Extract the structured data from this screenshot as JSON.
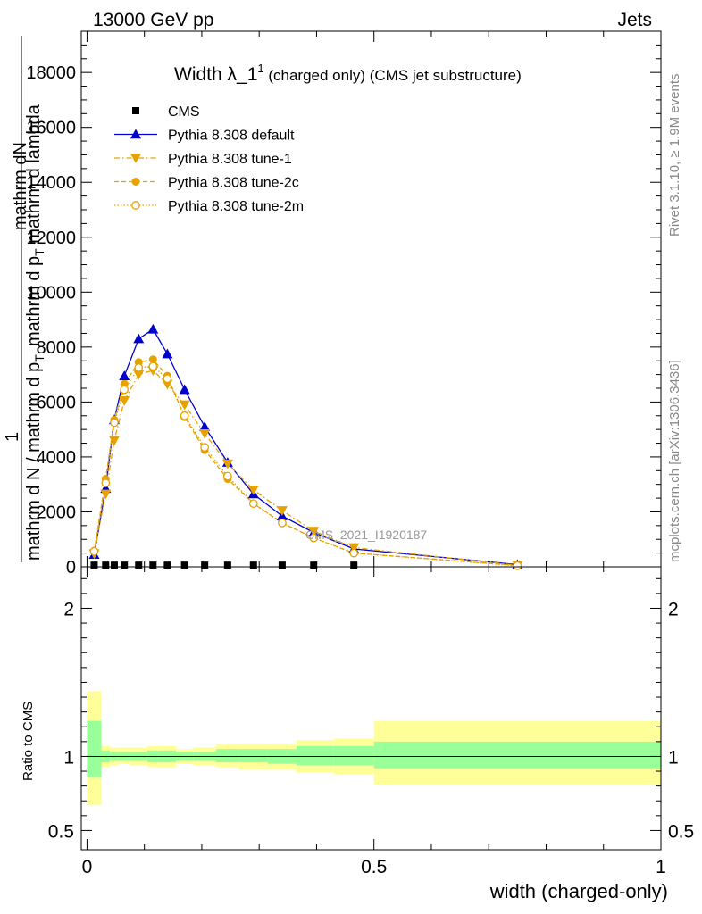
{
  "header": {
    "left": "13000 GeV pp",
    "right": "Jets"
  },
  "side_labels": {
    "rivet": "Rivet 3.1.10, ≥ 1.9M events",
    "mcplots": "mcplots.cern.ch [arXiv:1306.3436]"
  },
  "watermark": "CMS_2021_I1920187",
  "colors": {
    "cms": "#000000",
    "default": "#0000cc",
    "tune": "#e8a200",
    "band_inner": "#99ff99",
    "band_outer": "#ffff99"
  },
  "chart_data": {
    "type": "line",
    "title_main": "Width λ_1",
    "title_sup": "1",
    "title_rest": "(charged only) (CMS jet substructure)",
    "ylabel_num_top": "mathrm d",
    "ylabel_num_N": "N",
    "ylabel_num_sub": "mathrm d p",
    "ylabel_num_T": "T",
    "ylabel_num_tail": "mathrm d lambda",
    "ylabel_frac_one": "1",
    "ylabel_den": "mathrm d N / mathrm d p",
    "ylabel_den_T": "T",
    "xlabel": "width (charged-only)",
    "ratio_ylabel": "Ratio to CMS",
    "xlim": [
      -0.01,
      1.0
    ],
    "ylim": [
      0,
      19500
    ],
    "ratio_ylim": [
      0.37,
      2.28
    ],
    "x_ticks": [
      {
        "v": 0,
        "label": "0"
      },
      {
        "v": 0.5,
        "label": "0.5"
      },
      {
        "v": 1,
        "label": "1"
      }
    ],
    "y_ticks": [
      {
        "v": 0,
        "label": "0"
      },
      {
        "v": 2000,
        "label": "2000"
      },
      {
        "v": 4000,
        "label": "4000"
      },
      {
        "v": 6000,
        "label": "6000"
      },
      {
        "v": 8000,
        "label": "8000"
      },
      {
        "v": 10000,
        "label": "10000"
      },
      {
        "v": 12000,
        "label": "12000"
      },
      {
        "v": 14000,
        "label": "14000"
      },
      {
        "v": 16000,
        "label": "16000"
      },
      {
        "v": 18000,
        "label": "18000"
      }
    ],
    "ratio_ticks": [
      {
        "v": 0.5,
        "label": "0.5"
      },
      {
        "v": 1,
        "label": "1"
      },
      {
        "v": 2,
        "label": "2"
      }
    ],
    "cms_x": [
      0.0125,
      0.0325,
      0.0475,
      0.065,
      0.09,
      0.115,
      0.14,
      0.17,
      0.205,
      0.245,
      0.29,
      0.34,
      0.395,
      0.465
    ],
    "cms_y": [
      60,
      60,
      60,
      60,
      60,
      60,
      60,
      60,
      60,
      60,
      60,
      60,
      60,
      60
    ],
    "series": [
      {
        "name": "Pythia 8.308 default",
        "key": "default",
        "marker": "triangle-up",
        "dash": "",
        "x": [
          0.0125,
          0.0325,
          0.0475,
          0.065,
          0.09,
          0.115,
          0.14,
          0.17,
          0.205,
          0.245,
          0.29,
          0.34,
          0.395,
          0.465,
          0.75
        ],
        "y": [
          450,
          2850,
          5350,
          6950,
          8300,
          8650,
          7750,
          6450,
          5100,
          3800,
          2650,
          1850,
          1250,
          650,
          80
        ]
      },
      {
        "name": "Pythia 8.308 tune-1",
        "key": "tune",
        "marker": "triangle-down",
        "dash": "6 3 1.5 3",
        "x": [
          0.0125,
          0.0325,
          0.0475,
          0.065,
          0.09,
          0.115,
          0.14,
          0.17,
          0.205,
          0.245,
          0.29,
          0.34,
          0.395,
          0.465,
          0.75
        ],
        "y": [
          480,
          2650,
          4600,
          6050,
          7000,
          7150,
          6650,
          5900,
          4850,
          3750,
          2800,
          2050,
          1300,
          700,
          60
        ]
      },
      {
        "name": "Pythia 8.308 tune-2c",
        "key": "tune",
        "marker": "circle",
        "dash": "5 3",
        "x": [
          0.0125,
          0.0325,
          0.0475,
          0.065,
          0.09,
          0.115,
          0.14,
          0.17,
          0.205,
          0.245,
          0.29,
          0.34,
          0.395,
          0.465,
          0.75
        ],
        "y": [
          580,
          3200,
          5350,
          6650,
          7450,
          7550,
          6950,
          5450,
          4250,
          3200,
          2300,
          1600,
          1050,
          500,
          50
        ]
      },
      {
        "name": "Pythia 8.308 tune-2m",
        "key": "tune",
        "marker": "circle-open",
        "dash": "1.5 2",
        "x": [
          0.0125,
          0.0325,
          0.0475,
          0.065,
          0.09,
          0.115,
          0.14,
          0.17,
          0.205,
          0.245,
          0.29,
          0.34,
          0.395,
          0.465,
          0.75
        ],
        "y": [
          560,
          3050,
          5250,
          6450,
          7250,
          7300,
          6850,
          5500,
          4350,
          3300,
          2300,
          1600,
          1050,
          500,
          40
        ]
      }
    ],
    "ratio_bands": [
      {
        "x0": 0.0,
        "x1": 0.025,
        "in_lo": 0.86,
        "in_hi": 1.24,
        "out_lo": 0.67,
        "out_hi": 1.44
      },
      {
        "x0": 0.025,
        "x1": 0.04,
        "in_lo": 0.96,
        "in_hi": 1.04,
        "out_lo": 0.93,
        "out_hi": 1.07
      },
      {
        "x0": 0.04,
        "x1": 0.055,
        "in_lo": 0.97,
        "in_hi": 1.03,
        "out_lo": 0.94,
        "out_hi": 1.06
      },
      {
        "x0": 0.055,
        "x1": 0.075,
        "in_lo": 0.97,
        "in_hi": 1.03,
        "out_lo": 0.95,
        "out_hi": 1.06
      },
      {
        "x0": 0.075,
        "x1": 0.105,
        "in_lo": 0.97,
        "in_hi": 1.03,
        "out_lo": 0.94,
        "out_hi": 1.06
      },
      {
        "x0": 0.105,
        "x1": 0.125,
        "in_lo": 0.96,
        "in_hi": 1.04,
        "out_lo": 0.93,
        "out_hi": 1.07
      },
      {
        "x0": 0.125,
        "x1": 0.155,
        "in_lo": 0.96,
        "in_hi": 1.04,
        "out_lo": 0.93,
        "out_hi": 1.07
      },
      {
        "x0": 0.155,
        "x1": 0.185,
        "in_lo": 0.97,
        "in_hi": 1.03,
        "out_lo": 0.95,
        "out_hi": 1.05
      },
      {
        "x0": 0.185,
        "x1": 0.225,
        "in_lo": 0.97,
        "in_hi": 1.03,
        "out_lo": 0.94,
        "out_hi": 1.06
      },
      {
        "x0": 0.225,
        "x1": 0.265,
        "in_lo": 0.96,
        "in_hi": 1.05,
        "out_lo": 0.93,
        "out_hi": 1.08
      },
      {
        "x0": 0.265,
        "x1": 0.315,
        "in_lo": 0.96,
        "in_hi": 1.05,
        "out_lo": 0.91,
        "out_hi": 1.08
      },
      {
        "x0": 0.315,
        "x1": 0.365,
        "in_lo": 0.95,
        "in_hi": 1.05,
        "out_lo": 0.91,
        "out_hi": 1.08
      },
      {
        "x0": 0.365,
        "x1": 0.43,
        "in_lo": 0.94,
        "in_hi": 1.07,
        "out_lo": 0.89,
        "out_hi": 1.11
      },
      {
        "x0": 0.43,
        "x1": 0.5,
        "in_lo": 0.94,
        "in_hi": 1.07,
        "out_lo": 0.88,
        "out_hi": 1.12
      },
      {
        "x0": 0.5,
        "x1": 1.0,
        "in_lo": 0.92,
        "in_hi": 1.1,
        "out_lo": 0.81,
        "out_hi": 1.24
      }
    ]
  }
}
